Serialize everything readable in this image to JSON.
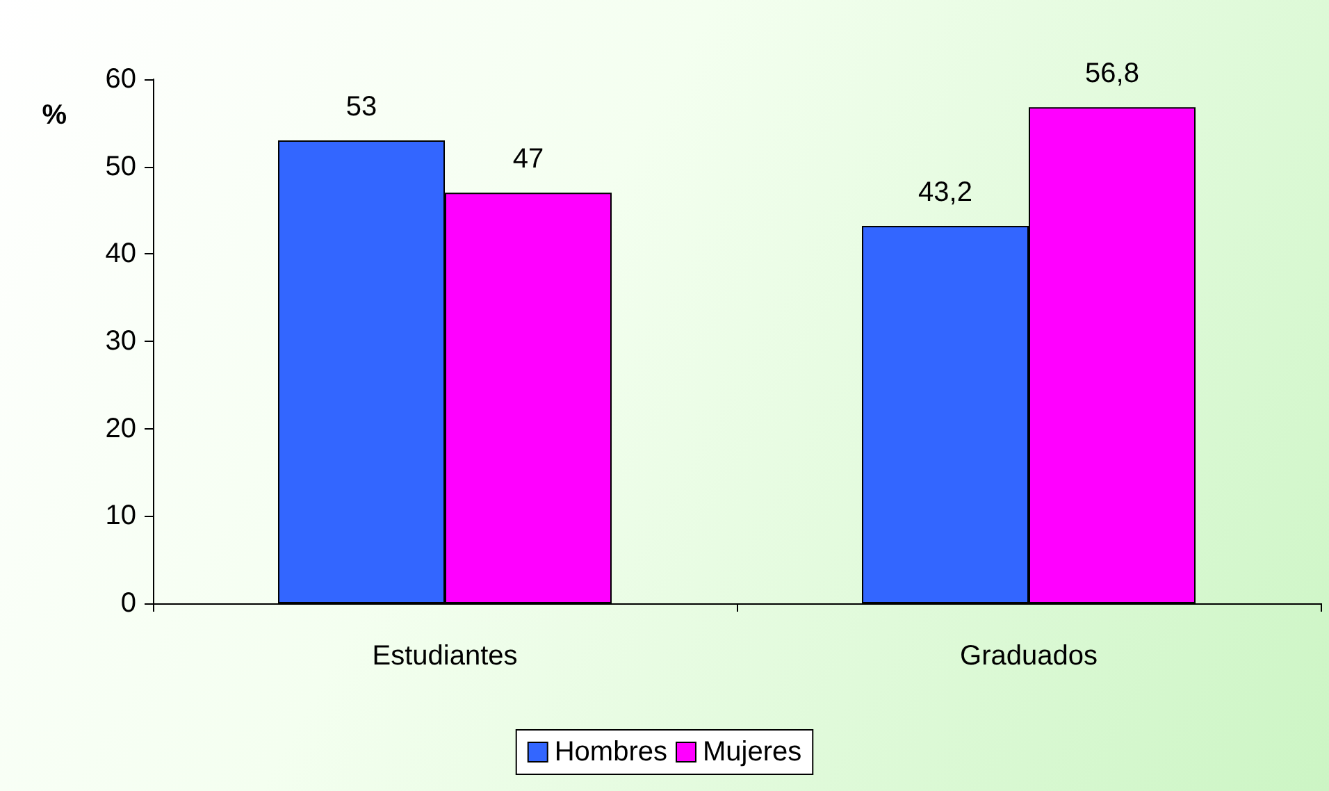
{
  "chart_data": {
    "type": "bar",
    "ylabel": "%",
    "categories": [
      "Estudiantes",
      "Graduados"
    ],
    "series": [
      {
        "name": "Hombres",
        "color": "#3366ff",
        "values": [
          53,
          43.2
        ],
        "value_labels": [
          "53",
          "43,2"
        ]
      },
      {
        "name": "Mujeres",
        "color": "#ff00ff",
        "values": [
          47,
          56.8
        ],
        "value_labels": [
          "47",
          "56,8"
        ]
      }
    ],
    "ylim": [
      0,
      60
    ],
    "yticks": [
      0,
      10,
      20,
      30,
      40,
      50,
      60
    ],
    "grid": false,
    "legend": "bottom"
  }
}
